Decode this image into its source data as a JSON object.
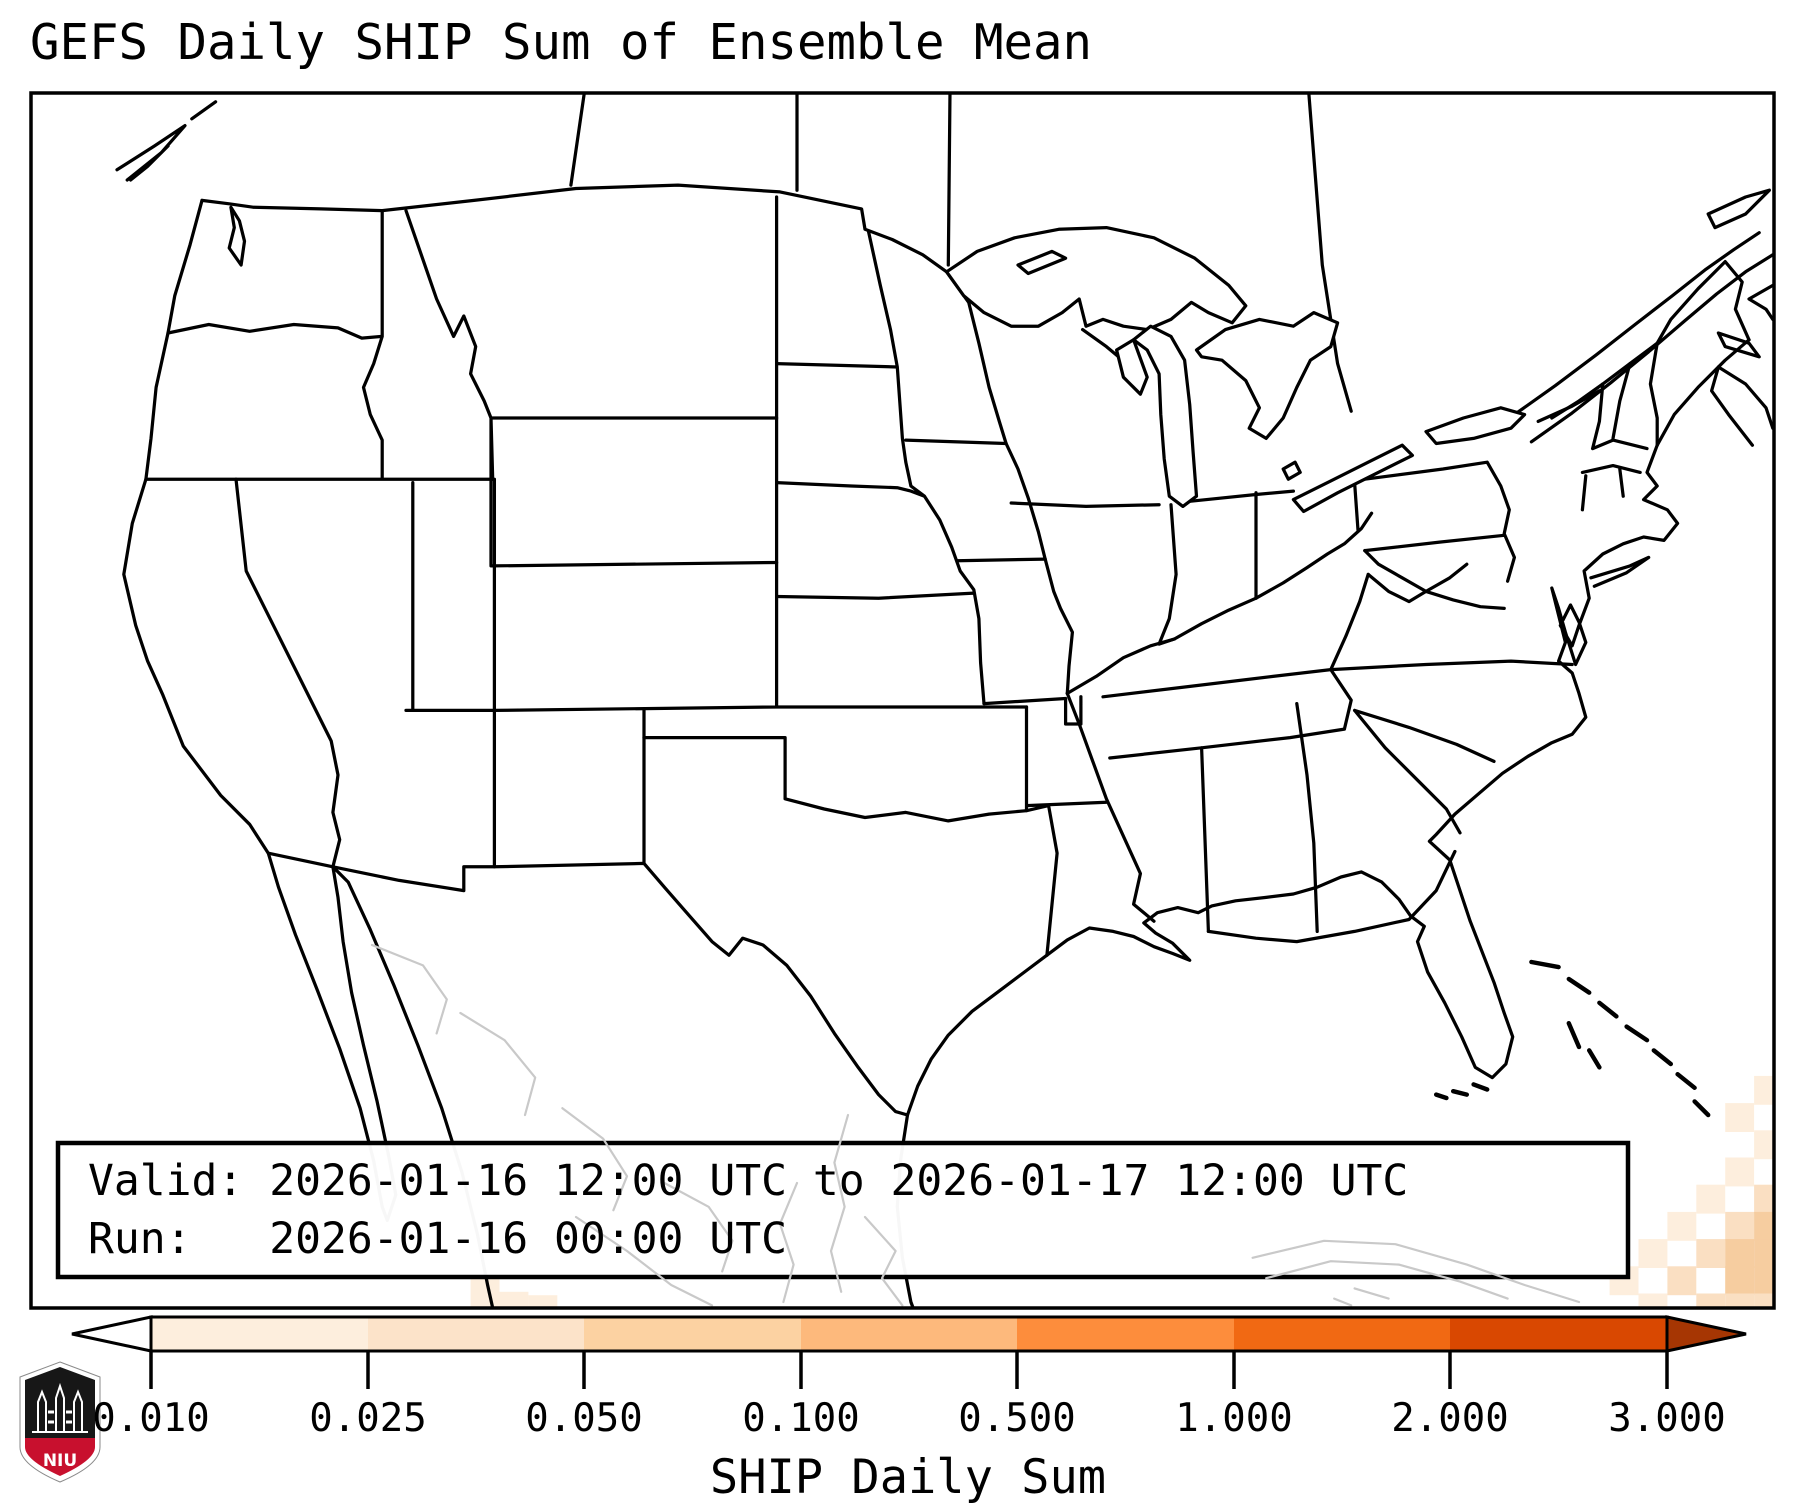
{
  "title": "GEFS Daily SHIP Sum of Ensemble Mean",
  "info_box": {
    "valid_line": "Valid: 2026-01-16 12:00 UTC to 2026-01-17 12:00 UTC",
    "run_line": "Run:   2026-01-16 00:00 UTC"
  },
  "colorbar": {
    "label": "SHIP Daily Sum",
    "tick_labels": [
      "0.010",
      "0.025",
      "0.050",
      "0.100",
      "0.500",
      "1.000",
      "2.000",
      "3.000"
    ],
    "segment_colors": [
      "#fdeedd",
      "#fce3c9",
      "#fcd2a2",
      "#fdb97c",
      "#fd8d3c",
      "#f16913",
      "#d94801"
    ],
    "under_arrow_color": "#ffffff",
    "over_arrow_color": "#a63603"
  },
  "map": {
    "us_outline_color": "#000000",
    "neighbor_outline_color": "#c9c9c9",
    "shading_palette": [
      "#fdeedd",
      "#fadfc2",
      "#f6cda0"
    ]
  },
  "logo": {
    "label": "NIU",
    "shield_top_color": "#171717",
    "shield_band_color": "#c8102e"
  }
}
